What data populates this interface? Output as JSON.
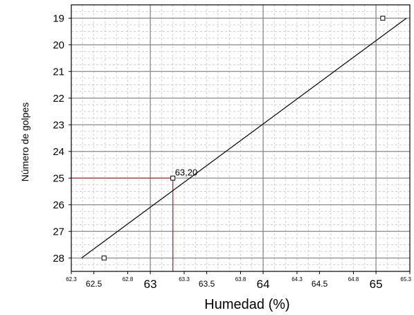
{
  "chart_data": {
    "type": "scatter",
    "xlabel": "Humedad (%)",
    "ylabel": "Número de golpes",
    "xlim": [
      62.3,
      65.3
    ],
    "ylim": [
      18.5,
      28.5
    ],
    "y_reversed": true,
    "grid": true,
    "x_ticks": [
      {
        "value": 62.3,
        "label": "62.3",
        "level": "minor"
      },
      {
        "value": 62.5,
        "label": "62.5",
        "level": "mid"
      },
      {
        "value": 62.8,
        "label": "62.8",
        "level": "minor"
      },
      {
        "value": 63,
        "label": "63",
        "level": "major"
      },
      {
        "value": 63.3,
        "label": "63.3",
        "level": "minor"
      },
      {
        "value": 63.5,
        "label": "63.5",
        "level": "mid"
      },
      {
        "value": 63.8,
        "label": "63.8",
        "level": "minor"
      },
      {
        "value": 64,
        "label": "64",
        "level": "major"
      },
      {
        "value": 64.3,
        "label": "64.3",
        "level": "minor"
      },
      {
        "value": 64.5,
        "label": "64.5",
        "level": "mid"
      },
      {
        "value": 64.8,
        "label": "64.8",
        "level": "minor"
      },
      {
        "value": 65,
        "label": "65",
        "level": "major"
      },
      {
        "value": 65.3,
        "label": "65.3",
        "level": "minor"
      }
    ],
    "y_ticks": [
      "19",
      "20",
      "21",
      "22",
      "23",
      "24",
      "25",
      "26",
      "27",
      "28"
    ],
    "points": [
      {
        "x": 62.59,
        "y": 28
      },
      {
        "x": 63.2,
        "y": 25
      },
      {
        "x": 65.06,
        "y": 19
      }
    ],
    "trend_line": [
      {
        "x": 62.39,
        "y": 28
      },
      {
        "x": 65.27,
        "y": 19
      }
    ],
    "reference": {
      "x": 63.2,
      "y": 25,
      "label": "63,20",
      "color": "#c0272d"
    },
    "colors": {
      "grid_major": "#888888",
      "grid_minor": "#cfcfcf",
      "line": "#000000"
    }
  }
}
